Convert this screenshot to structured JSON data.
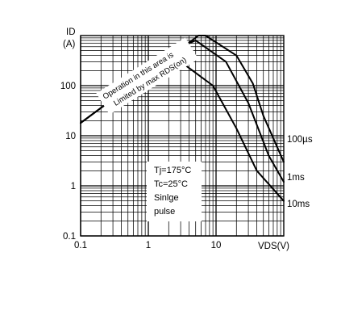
{
  "chart_data": {
    "type": "line",
    "title": "",
    "ylabel": "ID",
    "ylabel_unit": "(A)",
    "xlabel": "VDS(V)",
    "x_scale": "log",
    "y_scale": "log",
    "xlim": [
      0.1,
      100
    ],
    "ylim": [
      0.1,
      1000
    ],
    "grid": true,
    "x_ticks": [
      "0.1",
      "1",
      "10"
    ],
    "y_ticks": [
      "0.1",
      "1",
      "10",
      "100"
    ],
    "series": [
      {
        "name": "100µs",
        "points": [
          [
            0.1,
            18
          ],
          [
            1,
            180
          ],
          [
            5.5,
            1000
          ],
          [
            7,
            1000
          ],
          [
            20,
            400
          ],
          [
            35,
            110
          ],
          [
            50,
            25
          ],
          [
            100,
            3
          ]
        ]
      },
      {
        "name": "1ms",
        "points": [
          [
            0.1,
            18
          ],
          [
            1,
            180
          ],
          [
            4,
            700
          ],
          [
            5,
            800
          ],
          [
            14,
            300
          ],
          [
            30,
            45
          ],
          [
            60,
            4
          ],
          [
            100,
            1.2
          ]
        ]
      },
      {
        "name": "10ms",
        "points": [
          [
            0.1,
            18
          ],
          [
            1,
            180
          ],
          [
            2,
            360
          ],
          [
            3,
            300
          ],
          [
            9,
            100
          ],
          [
            20,
            14
          ],
          [
            40,
            2
          ],
          [
            100,
            0.5
          ]
        ]
      }
    ],
    "region_annotation": [
      "Operation in this area is",
      "Limited by max RDS(on)"
    ],
    "conditions": [
      "Tj=175°C",
      "Tc=25°C",
      "Sinlge",
      "pulse"
    ]
  }
}
